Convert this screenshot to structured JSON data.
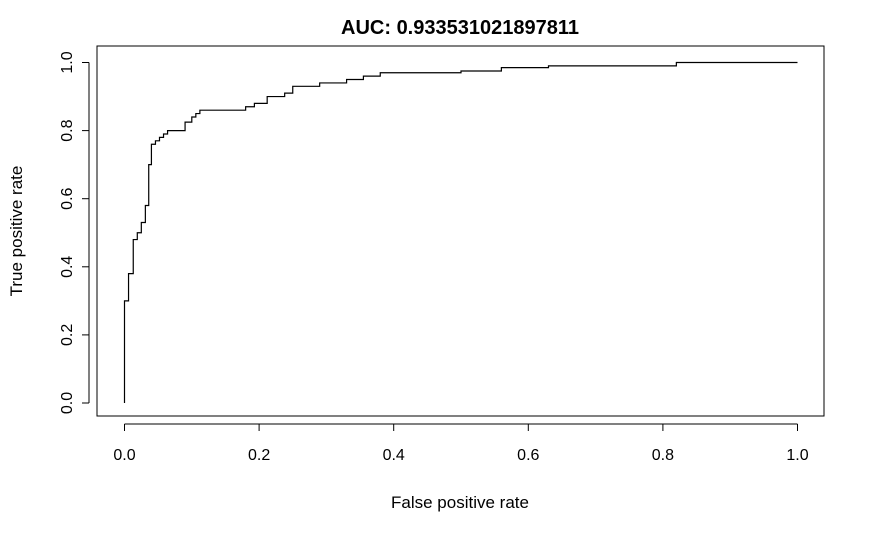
{
  "chart_data": {
    "type": "line",
    "title": "AUC:  0.933531021897811",
    "xlabel": "False positive rate",
    "ylabel": "True positive rate",
    "xlim": [
      0,
      1
    ],
    "ylim": [
      0,
      1
    ],
    "x_ticks": [
      "0.0",
      "0.2",
      "0.4",
      "0.6",
      "0.8",
      "1.0"
    ],
    "y_ticks": [
      "0.0",
      "0.2",
      "0.4",
      "0.6",
      "0.8",
      "1.0"
    ],
    "x_tick_values": [
      0,
      0.2,
      0.4,
      0.6,
      0.8,
      1.0
    ],
    "y_tick_values": [
      0,
      0.2,
      0.4,
      0.6,
      0.8,
      1.0
    ],
    "grid": false,
    "line_color": "#000000",
    "series": [
      {
        "step": true,
        "points": [
          [
            0.0,
            0.0
          ],
          [
            0.0,
            0.3
          ],
          [
            0.006,
            0.3
          ],
          [
            0.006,
            0.38
          ],
          [
            0.013,
            0.38
          ],
          [
            0.013,
            0.48
          ],
          [
            0.019,
            0.48
          ],
          [
            0.019,
            0.5
          ],
          [
            0.025,
            0.5
          ],
          [
            0.025,
            0.53
          ],
          [
            0.031,
            0.53
          ],
          [
            0.031,
            0.58
          ],
          [
            0.036,
            0.58
          ],
          [
            0.036,
            0.7
          ],
          [
            0.04,
            0.7
          ],
          [
            0.04,
            0.76
          ],
          [
            0.046,
            0.76
          ],
          [
            0.046,
            0.77
          ],
          [
            0.052,
            0.77
          ],
          [
            0.052,
            0.78
          ],
          [
            0.058,
            0.78
          ],
          [
            0.058,
            0.79
          ],
          [
            0.064,
            0.79
          ],
          [
            0.064,
            0.8
          ],
          [
            0.09,
            0.8
          ],
          [
            0.09,
            0.825
          ],
          [
            0.1,
            0.825
          ],
          [
            0.1,
            0.84
          ],
          [
            0.106,
            0.84
          ],
          [
            0.106,
            0.85
          ],
          [
            0.112,
            0.85
          ],
          [
            0.112,
            0.86
          ],
          [
            0.18,
            0.86
          ],
          [
            0.18,
            0.87
          ],
          [
            0.193,
            0.87
          ],
          [
            0.193,
            0.88
          ],
          [
            0.212,
            0.88
          ],
          [
            0.212,
            0.9
          ],
          [
            0.238,
            0.9
          ],
          [
            0.238,
            0.91
          ],
          [
            0.25,
            0.91
          ],
          [
            0.25,
            0.93
          ],
          [
            0.29,
            0.93
          ],
          [
            0.29,
            0.94
          ],
          [
            0.33,
            0.94
          ],
          [
            0.33,
            0.95
          ],
          [
            0.355,
            0.95
          ],
          [
            0.355,
            0.96
          ],
          [
            0.38,
            0.96
          ],
          [
            0.38,
            0.97
          ],
          [
            0.5,
            0.97
          ],
          [
            0.5,
            0.975
          ],
          [
            0.56,
            0.975
          ],
          [
            0.56,
            0.985
          ],
          [
            0.63,
            0.985
          ],
          [
            0.63,
            0.99
          ],
          [
            0.82,
            0.99
          ],
          [
            0.82,
            1.0
          ],
          [
            1.0,
            1.0
          ]
        ]
      }
    ]
  }
}
